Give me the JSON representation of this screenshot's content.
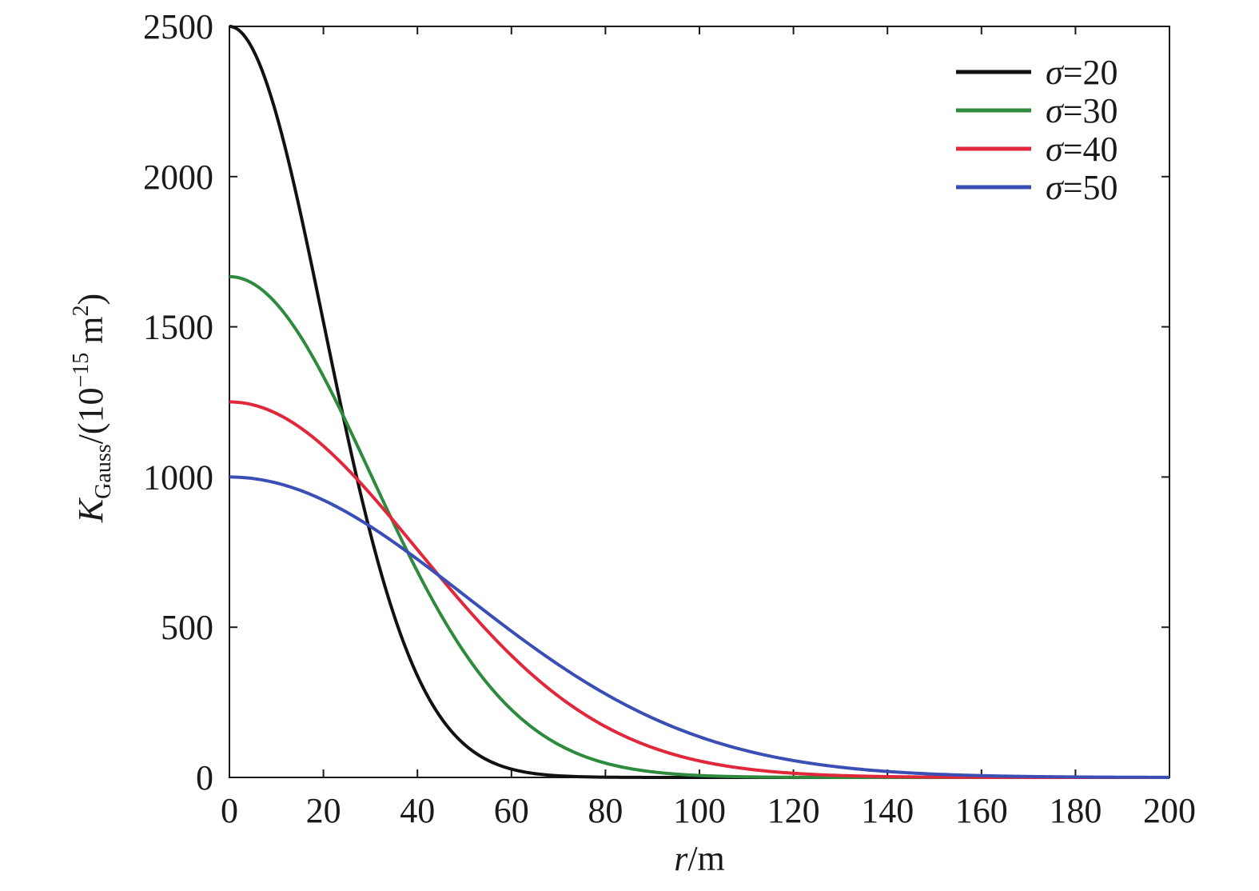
{
  "chart_data": {
    "type": "line",
    "title": "",
    "xlabel": {
      "var": "r",
      "unit": "/m"
    },
    "ylabel": {
      "var": "K",
      "sub": "Gauss",
      "unit_prefix": "/(10",
      "exp": "−15",
      "unit_mid": " m",
      "unit_exp": "2",
      "unit_suffix": ")"
    },
    "xlim": [
      0,
      200
    ],
    "ylim": [
      0,
      2500
    ],
    "x_ticks": [
      0,
      20,
      40,
      60,
      80,
      100,
      120,
      140,
      160,
      180,
      200
    ],
    "y_ticks": [
      0,
      500,
      1000,
      1500,
      2000,
      2500
    ],
    "grid": false,
    "legend_position": "top-right",
    "series": [
      {
        "name": "σ=20",
        "sigma_symbol": "σ",
        "sigma_value": "=20",
        "sigma": 20,
        "peak": 2500,
        "color": "#111111",
        "x": [
          0,
          5,
          10,
          15,
          20,
          25,
          30,
          35,
          40,
          45,
          50,
          55,
          60,
          65,
          70,
          80,
          100,
          200
        ],
        "y": [
          2500,
          2424,
          2206,
          1887,
          1516,
          1146,
          811,
          540,
          338,
          199,
          110,
          57,
          28,
          13,
          5,
          1,
          0,
          0
        ]
      },
      {
        "name": "σ=30",
        "sigma_symbol": "σ",
        "sigma_value": "=30",
        "sigma": 30,
        "peak": 1667,
        "color": "#2e8b3e",
        "x": [
          0,
          10,
          20,
          30,
          40,
          50,
          60,
          70,
          80,
          90,
          100,
          120,
          140,
          200
        ],
        "y": [
          1667,
          1582,
          1351,
          1011,
          685,
          416,
          226,
          110,
          48,
          18,
          6,
          1,
          0,
          0
        ]
      },
      {
        "name": "σ=40",
        "sigma_symbol": "σ",
        "sigma_value": "=40",
        "sigma": 40,
        "peak": 1250,
        "color": "#e0283a",
        "x": [
          0,
          10,
          20,
          30,
          40,
          50,
          60,
          70,
          80,
          90,
          100,
          120,
          140,
          160,
          200
        ],
        "y": [
          1250,
          1211,
          1103,
          944,
          758,
          573,
          406,
          271,
          169,
          99,
          55,
          14,
          2,
          0,
          0
        ]
      },
      {
        "name": "σ=50",
        "sigma_symbol": "σ",
        "sigma_value": "=50",
        "sigma": 50,
        "peak": 1000,
        "color": "#3a4fb5",
        "x": [
          0,
          10,
          20,
          30,
          40,
          50,
          60,
          70,
          80,
          90,
          100,
          120,
          140,
          160,
          180,
          200
        ],
        "y": [
          1000,
          980,
          923,
          835,
          726,
          607,
          487,
          375,
          278,
          198,
          135,
          56,
          20,
          6,
          2,
          0
        ]
      }
    ]
  }
}
